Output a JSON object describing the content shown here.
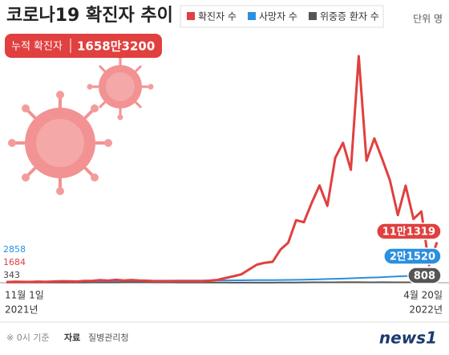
{
  "chart_data": {
    "type": "line",
    "title": "코로나19 확진자 추이",
    "unit": "단위 명",
    "total": {
      "label": "누적 확진자",
      "value": 16583200,
      "value_label": "1658만3200"
    },
    "categories": [
      "11월 1일",
      null,
      null,
      null,
      null,
      null,
      null,
      null,
      null,
      null,
      null,
      null,
      null,
      null,
      null,
      null,
      null,
      null,
      null,
      null,
      null,
      null,
      null,
      null,
      null,
      null,
      null,
      null,
      null,
      null,
      null,
      null,
      null,
      null,
      null,
      null,
      null,
      null,
      null,
      null,
      null,
      null,
      null,
      null,
      null,
      null,
      null,
      null,
      null,
      null,
      null,
      null,
      null,
      null,
      null,
      "4월 20일"
    ],
    "years": [
      "2021년",
      "2022년"
    ],
    "ylim": [
      0,
      630000
    ],
    "series": [
      {
        "name": "확진자 수",
        "color": "#e0403f",
        "end_label": "11만1319",
        "values": [
          1684,
          2667,
          2482,
          2124,
          3187,
          2368,
          3292,
          4115,
          3938,
          3309,
          5123,
          5352,
          7022,
          5817,
          7848,
          6233,
          7455,
          6233,
          5419,
          4207,
          3833,
          4444,
          4388,
          3859,
          4193,
          4071,
          5804,
          7630,
          13012,
          17513,
          22907,
          36362,
          49567,
          54619,
          57177,
          90443,
          109831,
          171452,
          165890,
          219241,
          266853,
          210716,
          342446,
          383665,
          309790,
          621328,
          334708,
          395598,
          339514,
          280273,
          185566,
          266135,
          175000,
          195419,
          47743,
          111319
        ]
      },
      {
        "name": "사망자 수",
        "color": "#2b8fe0",
        "end_label": "2만1520",
        "values": [
          2858,
          2920,
          2990,
          3060,
          3140,
          3220,
          3310,
          3400,
          3490,
          3580,
          3740,
          3930,
          4130,
          4350,
          4590,
          4800,
          5020,
          5220,
          5420,
          5625,
          5720,
          5810,
          5900,
          5990,
          6080,
          6180,
          6280,
          6380,
          6480,
          6588,
          6690,
          6810,
          6950,
          7100,
          7280,
          7480,
          7700,
          7960,
          8266,
          8800,
          9400,
          10100,
          10700,
          11300,
          12100,
          12900,
          13700,
          14400,
          15186,
          16300,
          17300,
          18300,
          19200,
          20000,
          20800,
          21520
        ]
      },
      {
        "name": "위중증 환자 수",
        "color": "#555555",
        "values": [
          343,
          370,
          400,
          430,
          470,
          510,
          540,
          580,
          620,
          660,
          720,
          790,
          850,
          900,
          960,
          1020,
          1080,
          1050,
          1000,
          980,
          880,
          820,
          750,
          660,
          600,
          540,
          460,
          400,
          350,
          270,
          260,
          270,
          280,
          300,
          330,
          400,
          480,
          620,
          900,
          1000,
          1100,
          1150,
          1200,
          1240,
          1300,
          1250,
          1150,
          1100,
          1300,
          1200,
          1150,
          1100,
          1000,
          950,
          900,
          808
        ]
      }
    ],
    "footnote": "※ 0시 기준",
    "source_label": "자료",
    "source": "질병관리청",
    "logo": "news1"
  }
}
